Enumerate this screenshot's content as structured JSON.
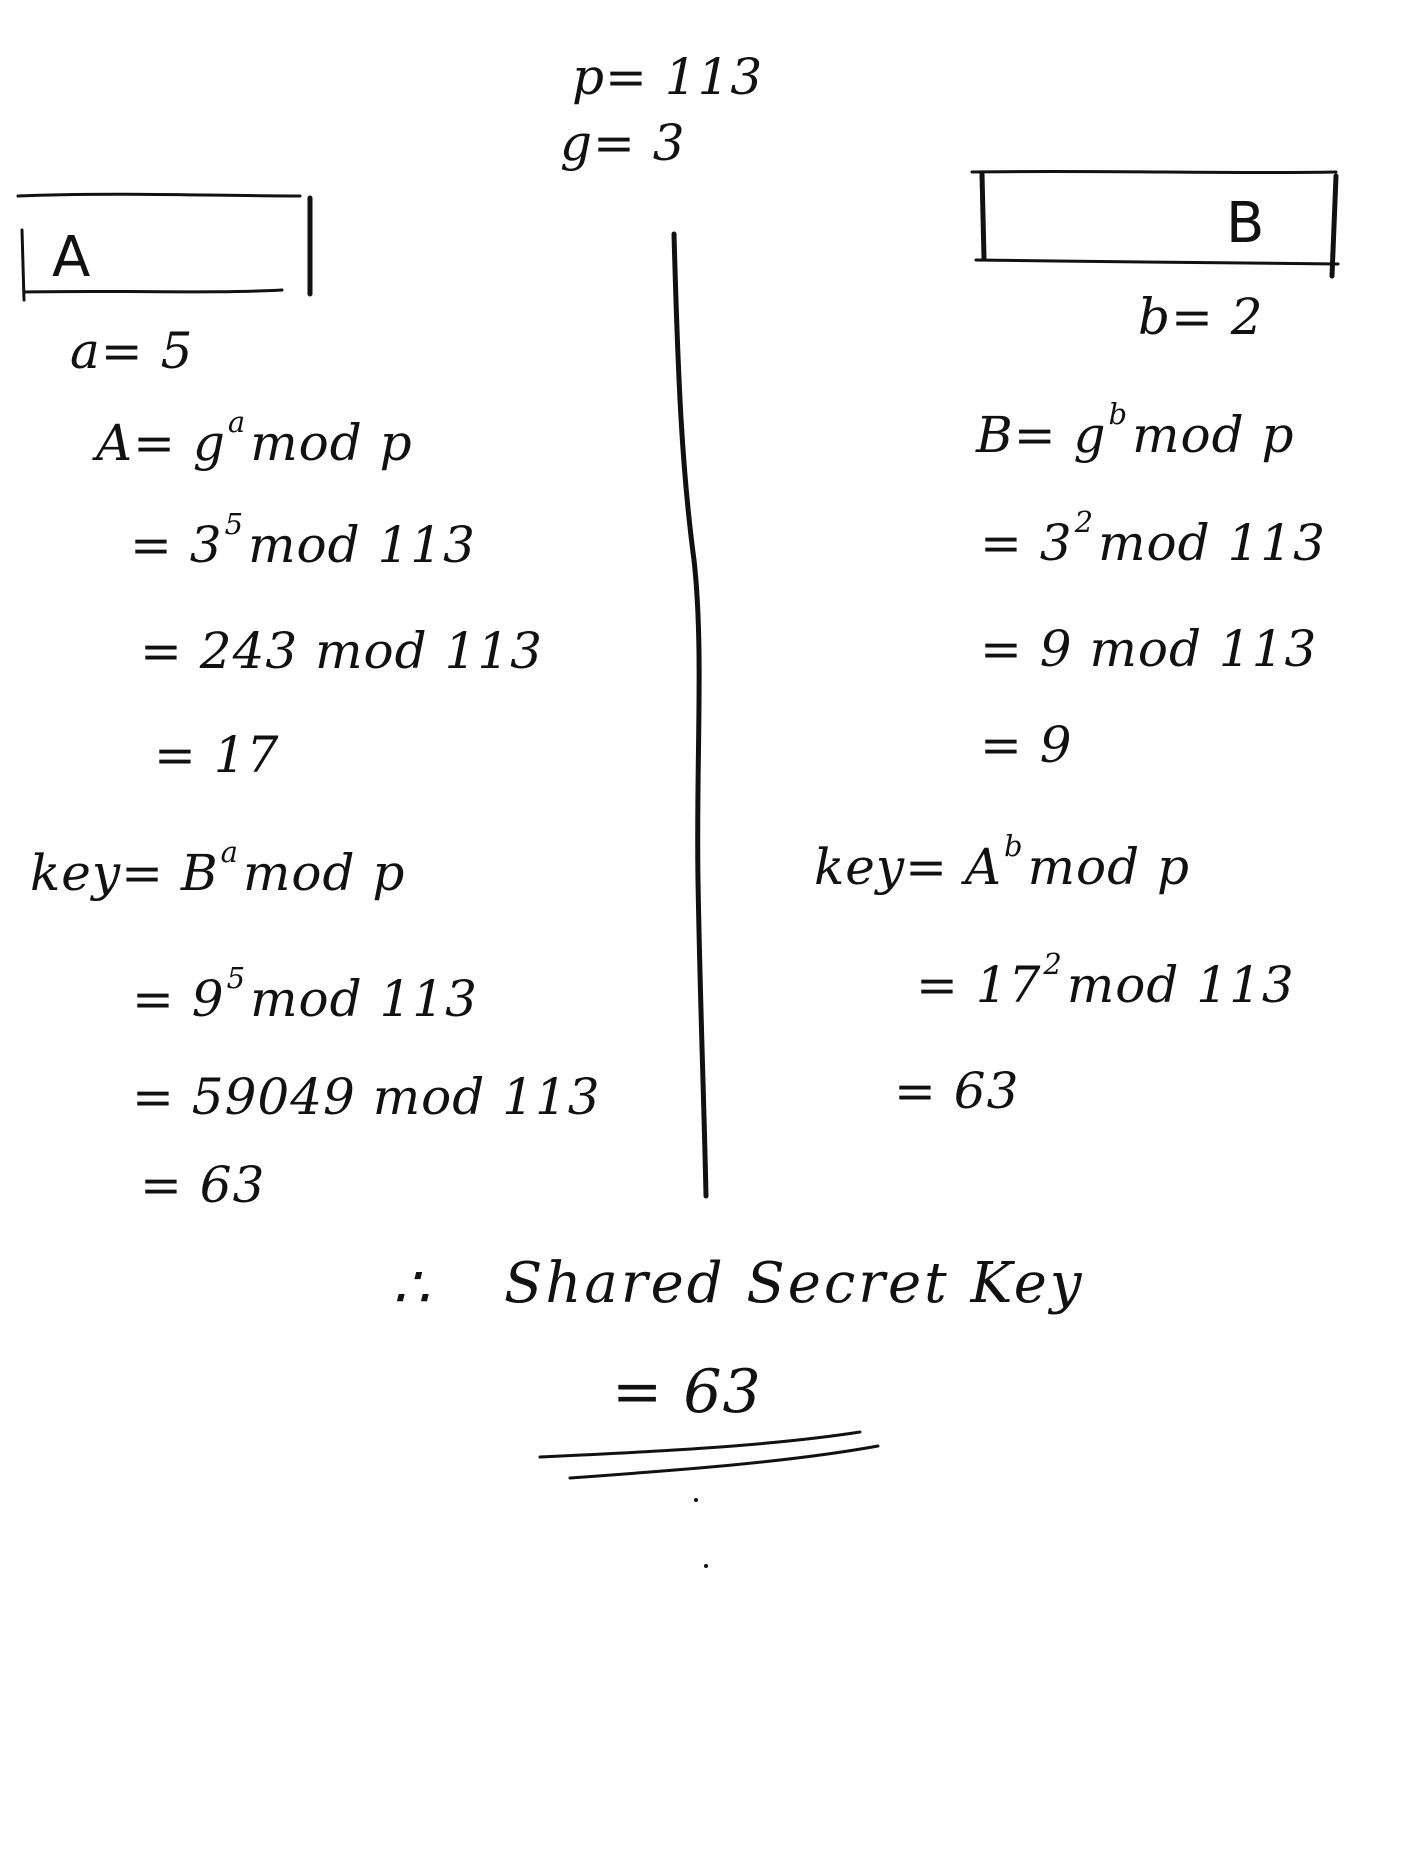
{
  "params": {
    "p": "p= 113",
    "g": "g= 3"
  },
  "party_a": {
    "label": "A",
    "private": "a= 5",
    "public_lhs": "A= g",
    "public_exp": "a",
    "public_rhs": "mod p",
    "step1_base": "= 3",
    "step1_exp": "5",
    "step1_rhs": "mod 113",
    "step2": "= 243 mod 113",
    "step3": "= 17",
    "key_lhs": "key= B",
    "key_exp": "a",
    "key_rhs": "mod p",
    "key_step1_base": "= 9",
    "key_step1_exp": "5",
    "key_step1_rhs": "mod 113",
    "key_step2": "= 59049 mod 113",
    "key_step3": "= 63"
  },
  "party_b": {
    "label": "B",
    "private": "b= 2",
    "public_lhs": "B= g",
    "public_exp": "b",
    "public_rhs": "mod p",
    "step1_base": "= 3",
    "step1_exp": "2",
    "step1_rhs": "mod 113",
    "step2": "= 9 mod 113",
    "step3": "= 9",
    "key_lhs": "key= A",
    "key_exp": "b",
    "key_rhs": "mod p",
    "key_step1_base": "= 17",
    "key_step1_exp": "2",
    "key_step1_rhs": "mod 113",
    "key_step2": "= 63"
  },
  "conclusion": {
    "therefore": "∴",
    "label": "Shared Secret Key",
    "value": "= 63"
  }
}
